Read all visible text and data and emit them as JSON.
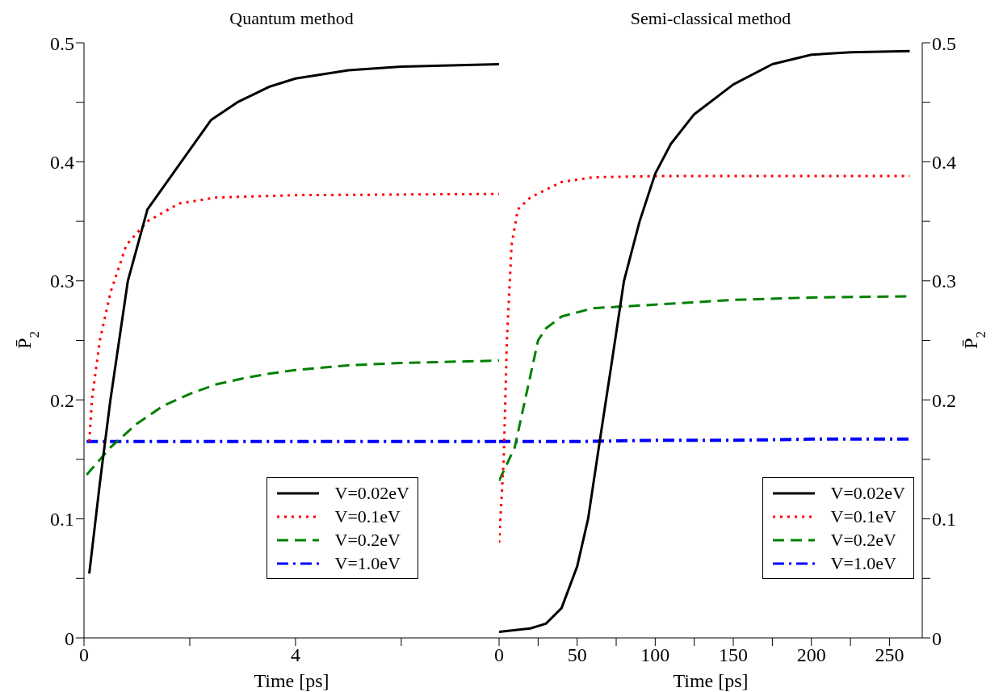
{
  "chart_data": [
    {
      "type": "line",
      "title": "Quantum method",
      "xlabel": "Time [ps]",
      "ylabel": "P̄$_{2}$",
      "xlim": [
        0,
        7.85
      ],
      "xticks": [
        0,
        {
          "value": 2,
          "label": null
        },
        4,
        {
          "value": 6,
          "label": null
        }
      ],
      "ylim": [
        0,
        0.5
      ],
      "yticks": [
        0,
        {
          "value": 0.05,
          "label": null
        },
        0.1,
        {
          "value": 0.15,
          "label": null
        },
        0.2,
        {
          "value": 0.25,
          "label": null
        },
        0.3,
        {
          "value": 0.35,
          "label": null
        },
        0.4,
        {
          "value": 0.45,
          "label": null
        },
        0.5
      ],
      "legend": "bottom right",
      "marker": "none",
      "series": [
        {
          "name": "V=0.02eV",
          "color": "#000000",
          "line_style": "solid",
          "x": [
            0.1,
            0.3,
            0.5,
            0.83,
            1.2,
            1.84,
            2.4,
            2.9,
            3.5,
            4,
            5,
            6,
            7.85
          ],
          "values": [
            0.054,
            0.13,
            0.2,
            0.3,
            0.36,
            0.4,
            0.435,
            0.45,
            0.463,
            0.47,
            0.477,
            0.48,
            0.482
          ]
        },
        {
          "name": "V=0.1eV",
          "color": "#ff0000",
          "line_style": "dotted",
          "x": [
            0.1,
            0.15,
            0.3,
            0.5,
            0.8,
            1.2,
            1.8,
            2.5,
            4,
            7.85
          ],
          "values": [
            0.165,
            0.2,
            0.25,
            0.29,
            0.33,
            0.35,
            0.365,
            0.37,
            0.372,
            0.373
          ]
        },
        {
          "name": "V=0.2eV",
          "color": "#008000",
          "line_style": "dashed",
          "x": [
            0.05,
            0.5,
            1,
            1.5,
            2,
            2.5,
            3,
            3.5,
            4,
            5,
            6,
            7.85
          ],
          "values": [
            0.137,
            0.16,
            0.18,
            0.195,
            0.205,
            0.213,
            0.218,
            0.222,
            0.225,
            0.229,
            0.231,
            0.233
          ]
        },
        {
          "name": "V=1.0eV",
          "color": "#0000ff",
          "line_style": "dashed",
          "x": [
            0.05,
            2,
            4,
            6,
            7.85
          ],
          "values": [
            0.165,
            0.165,
            0.165,
            0.165,
            0.165
          ]
        }
      ]
    },
    {
      "type": "line",
      "title": "Semi-classical method",
      "xlabel": "Time [ps]",
      "ylabel": "P̄$_{2}$",
      "xlim": [
        0,
        271
      ],
      "xticks": [
        0,
        {
          "value": 25,
          "label": null
        },
        50,
        {
          "value": 75,
          "label": null
        },
        100,
        {
          "value": 125,
          "label": null
        },
        150,
        {
          "value": 175,
          "label": null
        },
        200,
        {
          "value": 225,
          "label": null
        },
        250
      ],
      "ylim": [
        0,
        0.5
      ],
      "yticks": [
        0,
        {
          "value": 0.05,
          "label": null
        },
        0.1,
        {
          "value": 0.15,
          "label": null
        },
        0.2,
        {
          "value": 0.25,
          "label": null
        },
        0.3,
        {
          "value": 0.35,
          "label": null
        },
        0.4,
        {
          "value": 0.45,
          "label": null
        },
        0.5
      ],
      "legend": "bottom right",
      "marker": "none",
      "series": [
        {
          "name": "V=0.02eV",
          "color": "#000000",
          "line_style": "solid",
          "x": [
            0,
            20,
            30,
            40,
            50,
            57,
            65,
            72,
            80,
            90,
            100,
            110,
            125,
            150,
            175,
            200,
            225,
            263
          ],
          "values": [
            0.005,
            0.008,
            0.012,
            0.025,
            0.06,
            0.1,
            0.17,
            0.23,
            0.3,
            0.35,
            0.39,
            0.415,
            0.44,
            0.465,
            0.482,
            0.49,
            0.492,
            0.493
          ]
        },
        {
          "name": "V=0.1eV",
          "color": "#ff0000",
          "line_style": "dotted",
          "x": [
            0,
            3,
            5,
            8,
            12,
            20,
            40,
            60,
            100,
            150,
            263
          ],
          "values": [
            0.08,
            0.15,
            0.25,
            0.33,
            0.36,
            0.37,
            0.383,
            0.387,
            0.388,
            0.388,
            0.388
          ]
        },
        {
          "name": "V=0.2eV",
          "color": "#008000",
          "line_style": "dashed",
          "x": [
            0,
            10,
            20,
            25,
            30,
            40,
            60,
            100,
            150,
            200,
            263
          ],
          "values": [
            0.132,
            0.16,
            0.22,
            0.25,
            0.26,
            0.27,
            0.277,
            0.28,
            0.284,
            0.286,
            0.287
          ]
        },
        {
          "name": "V=1.0eV",
          "color": "#0000ff",
          "line_style": "dashed",
          "x": [
            0,
            50,
            100,
            150,
            200,
            263
          ],
          "values": [
            0.165,
            0.165,
            0.166,
            0.166,
            0.167,
            0.167
          ]
        }
      ]
    }
  ]
}
